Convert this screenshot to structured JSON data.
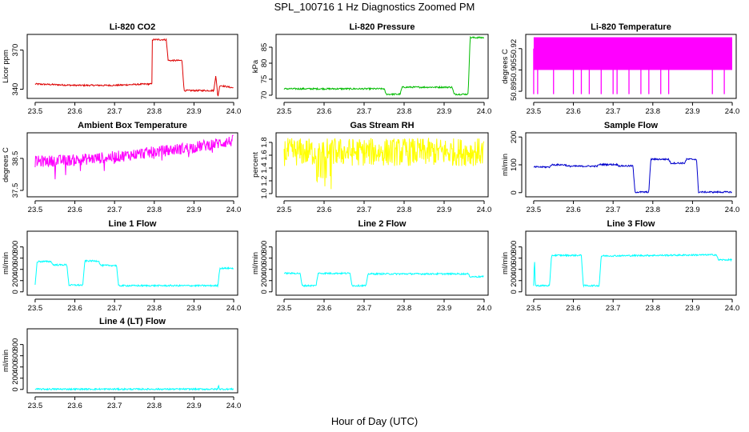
{
  "page": {
    "title": "SPL_100716  1 Hz Diagnostics Zoomed PM",
    "xlabel": "Hour of Day (UTC)"
  },
  "chart_data": [
    {
      "type": "line",
      "title": "Li-820 CO2",
      "ylabel": "Licor ppm",
      "color": "#dd0000",
      "xlim": [
        23.48,
        24.01
      ],
      "ylim": [
        333,
        382
      ],
      "yticks": [
        340,
        370
      ],
      "xticks": [
        23.5,
        23.6,
        23.7,
        23.8,
        23.9,
        24.0
      ],
      "series": [
        {
          "x": [
            23.5,
            23.6,
            23.7,
            23.78,
            23.795,
            23.795,
            23.83,
            23.835,
            23.87,
            23.875,
            23.95,
            23.955,
            23.96,
            23.965,
            24.0
          ],
          "y": [
            344,
            343,
            343,
            344,
            344,
            378,
            378,
            362,
            362,
            339,
            339,
            351,
            334,
            343,
            341
          ]
        }
      ]
    },
    {
      "type": "line",
      "title": "Li-820 Pressure",
      "ylabel": "kPa",
      "color": "#00bb00",
      "xlim": [
        23.48,
        24.01
      ],
      "ylim": [
        69,
        89
      ],
      "yticks": [
        70,
        75,
        80,
        85
      ],
      "xticks": [
        23.5,
        23.6,
        23.7,
        23.8,
        23.9,
        24.0
      ],
      "series": [
        {
          "x": [
            23.5,
            23.6,
            23.75,
            23.755,
            23.79,
            23.795,
            23.87,
            23.88,
            23.92,
            23.925,
            23.96,
            23.965,
            24.0
          ],
          "y": [
            72,
            72,
            72,
            70.3,
            70.3,
            72.5,
            72.5,
            72.5,
            72.5,
            70.3,
            70.3,
            88,
            88
          ]
        }
      ]
    },
    {
      "type": "line",
      "title": "Li-820 Temperature",
      "ylabel": "degrees C",
      "color": "#ff00ff",
      "xlim": [
        23.48,
        24.01
      ],
      "ylim": [
        50.885,
        50.93
      ],
      "yticks": [
        50.89,
        50.905,
        50.92
      ],
      "ytick_labels": [
        "50.89",
        "50.905",
        "50.92"
      ],
      "xticks": [
        23.5,
        23.6,
        23.7,
        23.8,
        23.9,
        24.0
      ],
      "series": [
        {
          "x": [
            23.5,
            24.0
          ],
          "y": [
            50.92,
            50.92
          ]
        }
      ],
      "dips": [
        23.5,
        23.51,
        23.55,
        23.6,
        23.62,
        23.64,
        23.67,
        23.7,
        23.71,
        23.74,
        23.77,
        23.79,
        23.82,
        23.84,
        23.95,
        23.98
      ]
    },
    {
      "type": "line",
      "title": "Ambient Box Temperature",
      "ylabel": "degrees C",
      "color": "#ff00ff",
      "xlim": [
        23.48,
        24.01
      ],
      "ylim": [
        37.3,
        39.3
      ],
      "yticks": [
        37.5,
        38.5
      ],
      "xticks": [
        23.5,
        23.6,
        23.7,
        23.8,
        23.9,
        24.0
      ],
      "series": [
        {
          "x": [
            23.5,
            23.6,
            23.7,
            23.8,
            23.9,
            24.0
          ],
          "y": [
            38.4,
            38.45,
            38.55,
            38.7,
            38.85,
            39.05
          ]
        }
      ]
    },
    {
      "type": "line",
      "title": "Gas Stream RH",
      "ylabel": "percent",
      "color": "#ffff00",
      "xlim": [
        23.48,
        24.01
      ],
      "ylim": [
        0.95,
        1.95
      ],
      "yticks": [
        1.0,
        1.2,
        1.4,
        1.6,
        1.8
      ],
      "ytick_labels": [
        "1.0",
        "1.2",
        "1.4",
        "1.6",
        "1.8"
      ],
      "xticks": [
        23.5,
        23.6,
        23.7,
        23.8,
        23.9,
        24.0
      ],
      "series": [
        {
          "x": [
            23.5,
            24.0
          ],
          "y": [
            1.65,
            1.65
          ]
        }
      ]
    },
    {
      "type": "line",
      "title": "Sample Flow",
      "ylabel": "ml/min",
      "color": "#0000cc",
      "xlim": [
        23.48,
        24.01
      ],
      "ylim": [
        -15,
        215
      ],
      "yticks": [
        0,
        100,
        200
      ],
      "xticks": [
        23.5,
        23.6,
        23.7,
        23.8,
        23.9,
        24.0
      ],
      "series": [
        {
          "x": [
            23.5,
            23.54,
            23.545,
            23.58,
            23.585,
            23.66,
            23.665,
            23.71,
            23.715,
            23.75,
            23.755,
            23.79,
            23.795,
            23.84,
            23.845,
            23.88,
            23.885,
            23.91,
            23.915,
            24.0
          ],
          "y": [
            92,
            92,
            100,
            100,
            95,
            95,
            101,
            101,
            96,
            96,
            2,
            2,
            120,
            120,
            106,
            106,
            120,
            120,
            2,
            2
          ]
        }
      ]
    },
    {
      "type": "line",
      "title": "Line 1 Flow",
      "ylabel": "ml/min",
      "color": "#00ffff",
      "xlim": [
        23.48,
        24.01
      ],
      "ylim": [
        -60,
        1080
      ],
      "yticks": [
        0,
        200,
        400,
        600,
        800
      ],
      "xticks": [
        23.5,
        23.6,
        23.7,
        23.8,
        23.9,
        24.0
      ],
      "series": [
        {
          "x": [
            23.5,
            23.505,
            23.54,
            23.545,
            23.58,
            23.585,
            23.62,
            23.625,
            23.66,
            23.665,
            23.705,
            23.71,
            23.96,
            23.965,
            24.0
          ],
          "y": [
            120,
            540,
            540,
            480,
            480,
            120,
            120,
            550,
            550,
            470,
            470,
            110,
            110,
            420,
            420
          ]
        }
      ]
    },
    {
      "type": "line",
      "title": "Line 2 Flow",
      "ylabel": "ml/min",
      "color": "#00ffff",
      "xlim": [
        23.48,
        24.01
      ],
      "ylim": [
        -60,
        1080
      ],
      "yticks": [
        0,
        200,
        400,
        600,
        800
      ],
      "xticks": [
        23.5,
        23.6,
        23.7,
        23.8,
        23.9,
        24.0
      ],
      "series": [
        {
          "x": [
            23.5,
            23.54,
            23.545,
            23.58,
            23.585,
            23.665,
            23.67,
            23.705,
            23.71,
            23.96,
            23.965,
            24.0
          ],
          "y": [
            330,
            330,
            110,
            110,
            330,
            330,
            110,
            110,
            320,
            320,
            270,
            270
          ]
        }
      ]
    },
    {
      "type": "line",
      "title": "Line 3 Flow",
      "ylabel": "ml/min",
      "color": "#00ffff",
      "xlim": [
        23.48,
        24.01
      ],
      "ylim": [
        -60,
        1080
      ],
      "yticks": [
        0,
        200,
        400,
        600,
        800
      ],
      "xticks": [
        23.5,
        23.6,
        23.7,
        23.8,
        23.9,
        24.0
      ],
      "series": [
        {
          "x": [
            23.5,
            23.502,
            23.504,
            23.54,
            23.545,
            23.62,
            23.625,
            23.665,
            23.67,
            23.96,
            23.965,
            24.0
          ],
          "y": [
            100,
            650,
            110,
            110,
            650,
            650,
            110,
            110,
            640,
            660,
            570,
            570
          ]
        }
      ]
    },
    {
      "type": "line",
      "title": "Line 4 (LT) Flow",
      "ylabel": "ml/min",
      "color": "#00ffff",
      "xlim": [
        23.48,
        24.01
      ],
      "ylim": [
        -60,
        1080
      ],
      "yticks": [
        0,
        200,
        400,
        600,
        800
      ],
      "xticks": [
        23.5,
        23.6,
        23.7,
        23.8,
        23.9,
        24.0
      ],
      "series": [
        {
          "x": [
            23.5,
            23.96,
            23.962,
            23.964,
            24.0
          ],
          "y": [
            5,
            5,
            80,
            5,
            5
          ]
        }
      ]
    }
  ]
}
